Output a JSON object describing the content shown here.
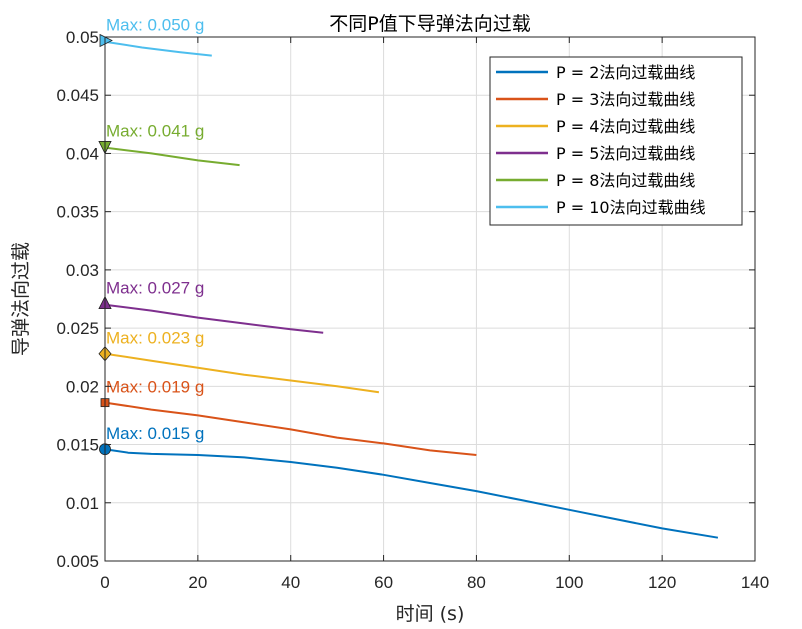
{
  "chart_data": {
    "type": "line",
    "title": "不同P值下导弹法向过载",
    "xlabel": "时间 (s)",
    "ylabel": "导弹法向过载",
    "xlim": [
      0,
      140
    ],
    "ylim": [
      0.005,
      0.05
    ],
    "xticks": [
      0,
      20,
      40,
      60,
      80,
      100,
      120,
      140
    ],
    "yticks": [
      0.005,
      0.01,
      0.015,
      0.02,
      0.025,
      0.03,
      0.035,
      0.04,
      0.045,
      0.05
    ],
    "xtick_labels": [
      "0",
      "20",
      "40",
      "60",
      "80",
      "100",
      "120",
      "140"
    ],
    "ytick_labels": [
      "0.005",
      "0.01",
      "0.015",
      "0.02",
      "0.025",
      "0.03",
      "0.035",
      "0.04",
      "0.045",
      "0.05"
    ],
    "grid": true,
    "legend_position": "top-right",
    "series": [
      {
        "name": "P = 2法向过载曲线",
        "color": "#0072BD",
        "x": [
          0,
          5,
          10,
          20,
          30,
          40,
          50,
          60,
          70,
          80,
          90,
          100,
          110,
          120,
          132
        ],
        "y": [
          0.0146,
          0.0143,
          0.0142,
          0.0141,
          0.0139,
          0.0135,
          0.013,
          0.0124,
          0.0117,
          0.011,
          0.0102,
          0.0094,
          0.0086,
          0.0078,
          0.007
        ],
        "marker": "circle",
        "max_label": "Max: 0.015 g",
        "max_x": 0,
        "max_y": 0.0146
      },
      {
        "name": "P = 3法向过载曲线",
        "color": "#D95319",
        "x": [
          0,
          10,
          20,
          30,
          40,
          50,
          60,
          70,
          80
        ],
        "y": [
          0.0186,
          0.018,
          0.0175,
          0.0169,
          0.0163,
          0.0156,
          0.0151,
          0.0145,
          0.0141
        ],
        "marker": "square",
        "max_label": "Max: 0.019 g",
        "max_x": 0,
        "max_y": 0.0186
      },
      {
        "name": "P = 4法向过载曲线",
        "color": "#EDB120",
        "x": [
          0,
          10,
          20,
          30,
          40,
          50,
          59
        ],
        "y": [
          0.0228,
          0.0222,
          0.0216,
          0.021,
          0.0205,
          0.02,
          0.0195
        ],
        "marker": "diamond",
        "max_label": "Max: 0.023 g",
        "max_x": 0,
        "max_y": 0.0228
      },
      {
        "name": "P = 5法向过载曲线",
        "color": "#7E2F8E",
        "x": [
          0,
          10,
          20,
          30,
          40,
          47
        ],
        "y": [
          0.027,
          0.0265,
          0.0259,
          0.0254,
          0.0249,
          0.0246
        ],
        "marker": "triangle-up",
        "max_label": "Max: 0.027 g",
        "max_x": 0,
        "max_y": 0.0271
      },
      {
        "name": "P = 8法向过载曲线",
        "color": "#77AC30",
        "x": [
          0,
          10,
          20,
          29
        ],
        "y": [
          0.0405,
          0.04,
          0.0394,
          0.039
        ],
        "marker": "triangle-down",
        "max_label": "Max: 0.041 g",
        "max_x": 0,
        "max_y": 0.0406
      },
      {
        "name": "P = 10法向过载曲线",
        "color": "#4DBEEE",
        "x": [
          0,
          8,
          16,
          23
        ],
        "y": [
          0.0496,
          0.0491,
          0.0487,
          0.0484
        ],
        "marker": "triangle-right",
        "max_label": "Max: 0.050 g",
        "max_x": 0,
        "max_y": 0.0497
      }
    ]
  }
}
